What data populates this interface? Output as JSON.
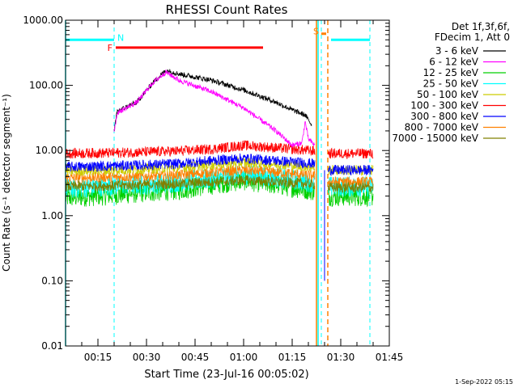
{
  "chart_data": {
    "type": "line",
    "title": "RHESSI Count Rates",
    "xlabel": "Start Time (23-Jul-16 00:05:02)",
    "ylabel": "Count Rate (s⁻¹ detector segment⁻¹)",
    "yscale": "log",
    "ylim": [
      0.01,
      1000
    ],
    "xlim_minutes": [
      5,
      105
    ],
    "x_ticks": [
      {
        "min": 15,
        "label": "00:15"
      },
      {
        "min": 30,
        "label": "00:30"
      },
      {
        "min": 45,
        "label": "00:45"
      },
      {
        "min": 60,
        "label": "01:00"
      },
      {
        "min": 75,
        "label": "01:15"
      },
      {
        "min": 90,
        "label": "01:30"
      },
      {
        "min": 105,
        "label": "01:45"
      }
    ],
    "y_ticks": [
      {
        "value": 1000,
        "label": "1000.00"
      },
      {
        "value": 100,
        "label": "100.00"
      },
      {
        "value": 10,
        "label": "10.00"
      },
      {
        "value": 1,
        "label": "1.00"
      },
      {
        "value": 0.1,
        "label": "0.10"
      },
      {
        "value": 0.01,
        "label": "0.01"
      }
    ],
    "legend_header": [
      "Det 1f,3f,6f,",
      "FDecim 1, Att 0"
    ],
    "series": [
      {
        "name": "3 - 6 keV",
        "color": "#000000",
        "gap_end": 81,
        "points": [
          [
            20,
            20
          ],
          [
            21,
            40
          ],
          [
            27,
            55
          ],
          [
            32,
            110
          ],
          [
            36,
            170
          ],
          [
            40,
            150
          ],
          [
            50,
            120
          ],
          [
            60,
            85
          ],
          [
            70,
            55
          ],
          [
            75,
            42
          ],
          [
            79,
            35
          ],
          [
            81,
            25
          ]
        ]
      },
      {
        "name": "6 - 12 keV",
        "color": "#ff00ff",
        "gap_end": 82,
        "points": [
          [
            20,
            20
          ],
          [
            21,
            38
          ],
          [
            27,
            55
          ],
          [
            32,
            110
          ],
          [
            36,
            160
          ],
          [
            40,
            120
          ],
          [
            50,
            80
          ],
          [
            60,
            45
          ],
          [
            70,
            20
          ],
          [
            75,
            12
          ],
          [
            78,
            13
          ],
          [
            79,
            28
          ],
          [
            80,
            15
          ],
          [
            82,
            12
          ]
        ]
      },
      {
        "name": "12 - 25 keV",
        "color": "#00d000",
        "gap_end": 82,
        "points": [
          [
            5,
            1.9
          ],
          [
            20,
            2.1
          ],
          [
            30,
            2.3
          ],
          [
            40,
            2.5
          ],
          [
            50,
            3.0
          ],
          [
            60,
            3.5
          ],
          [
            70,
            3.0
          ],
          [
            80,
            2.5
          ],
          [
            82,
            2.4
          ],
          [
            86,
            2.0
          ],
          [
            100,
            2.0
          ]
        ]
      },
      {
        "name": "25 - 50 keV",
        "color": "#00ffff",
        "gap_end": 82,
        "points": [
          [
            5,
            2.6
          ],
          [
            20,
            2.9
          ],
          [
            30,
            3.0
          ],
          [
            40,
            3.3
          ],
          [
            50,
            3.7
          ],
          [
            60,
            4.3
          ],
          [
            70,
            3.9
          ],
          [
            80,
            3.3
          ],
          [
            82,
            3.2
          ],
          [
            86,
            2.8
          ],
          [
            100,
            2.8
          ]
        ]
      },
      {
        "name": "50 - 100 keV",
        "color": "#cccc00",
        "gap_end": 82,
        "points": [
          [
            5,
            4.8
          ],
          [
            20,
            5.0
          ],
          [
            30,
            5.2
          ],
          [
            40,
            5.5
          ],
          [
            50,
            6.0
          ],
          [
            60,
            6.6
          ],
          [
            70,
            6.2
          ],
          [
            80,
            5.6
          ],
          [
            82,
            5.5
          ],
          [
            86,
            5.0
          ],
          [
            100,
            5.0
          ]
        ]
      },
      {
        "name": "100 - 300 keV",
        "color": "#ff0000",
        "gap_end": 82,
        "points": [
          [
            5,
            9.0
          ],
          [
            20,
            9.2
          ],
          [
            30,
            9.5
          ],
          [
            40,
            9.8
          ],
          [
            50,
            10.5
          ],
          [
            60,
            12.0
          ],
          [
            70,
            11.0
          ],
          [
            80,
            10.0
          ],
          [
            82,
            9.8
          ],
          [
            86,
            9.0
          ],
          [
            100,
            9.0
          ]
        ]
      },
      {
        "name": "300 - 800 keV",
        "color": "#0000ff",
        "gap_end": 82,
        "points": [
          [
            5,
            5.6
          ],
          [
            20,
            5.8
          ],
          [
            30,
            6.0
          ],
          [
            40,
            6.3
          ],
          [
            50,
            7.0
          ],
          [
            60,
            7.6
          ],
          [
            70,
            7.0
          ],
          [
            80,
            6.4
          ],
          [
            82,
            6.2
          ],
          [
            86,
            5.0
          ],
          [
            100,
            5.0
          ]
        ]
      },
      {
        "name": "800 - 7000 keV",
        "color": "#ff8000",
        "gap_end": 82,
        "points": [
          [
            5,
            3.8
          ],
          [
            20,
            3.9
          ],
          [
            30,
            4.0
          ],
          [
            40,
            4.2
          ],
          [
            50,
            4.6
          ],
          [
            60,
            5.0
          ],
          [
            70,
            4.6
          ],
          [
            80,
            4.2
          ],
          [
            82,
            4.1
          ],
          [
            86,
            3.3
          ],
          [
            100,
            3.3
          ]
        ]
      },
      {
        "name": "7000 - 15000 keV",
        "color": "#808000",
        "gap_end": 82,
        "points": [
          [
            5,
            2.8
          ],
          [
            20,
            2.9
          ],
          [
            30,
            3.0
          ],
          [
            40,
            3.1
          ],
          [
            50,
            3.3
          ],
          [
            60,
            3.5
          ],
          [
            70,
            3.3
          ],
          [
            80,
            3.1
          ],
          [
            82,
            3.0
          ],
          [
            86,
            2.7
          ],
          [
            100,
            2.7
          ]
        ]
      }
    ],
    "annotations": {
      "night_bars": [
        {
          "label": "N",
          "color": "#00ffff",
          "y": 500,
          "segments": [
            [
              5,
              20
            ],
            [
              87,
              99
            ]
          ]
        }
      ],
      "flare_bar": {
        "label": "F",
        "color": "#ff0000",
        "y": 380,
        "start": 20.5,
        "end": 66
      },
      "saa_bar": {
        "label": "S",
        "color": "#ff8000",
        "y": 620,
        "start": 84,
        "end": 85.5
      },
      "dashed_cyan_lines": [
        20,
        84,
        99
      ],
      "solid_cyan_lines": [
        5,
        83
      ],
      "solid_orange_lines": [
        82.5
      ],
      "dashed_orange_lines": [
        86
      ],
      "blue_dip": {
        "x": 85,
        "from": 5.0,
        "to": 0.1
      }
    },
    "grid": false,
    "legend_position": "top-right"
  },
  "footer": {
    "timestamp": "1-Sep-2022 05:15"
  }
}
